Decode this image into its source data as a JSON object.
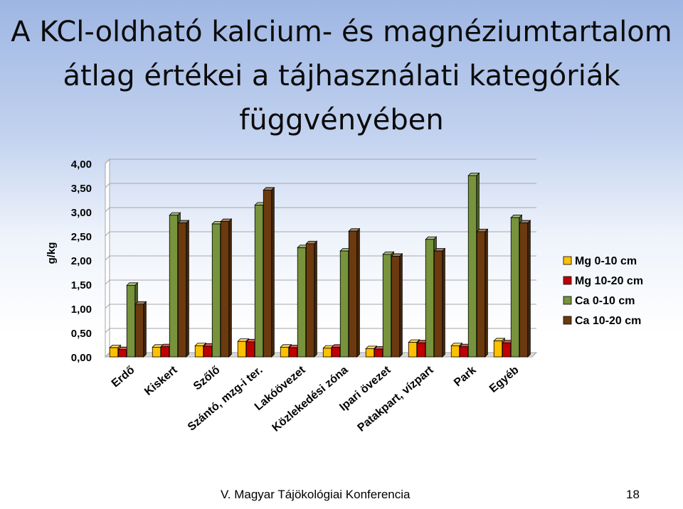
{
  "slide": {
    "title_lines": [
      "A KCl-oldható kalcium- és magnéziumtartalom",
      "átlag értékei a tájhasználati kategóriák",
      "függvényében"
    ],
    "footer": "V. Magyar Tájökológiai Konferencia",
    "page_number": "18"
  },
  "chart_data": {
    "type": "bar",
    "title": "",
    "xlabel": "",
    "ylabel": "g/kg",
    "ylim": [
      0,
      4
    ],
    "yticks": [
      "0,00",
      "0,50",
      "1,00",
      "1,50",
      "2,00",
      "2,50",
      "3,00",
      "3,50",
      "4,00"
    ],
    "legend_position": "right",
    "categories": [
      "Erdő",
      "Kiskert",
      "Szőlő",
      "Szántó, mzg-i ter.",
      "Lakóövezet",
      "Közlekedési zóna",
      "Ipari övezet",
      "Patakpart, vízpart",
      "Park",
      "Egyéb"
    ],
    "series": [
      {
        "name": "Mg 0-10 cm",
        "color": "#ffc000",
        "values": [
          0.19,
          0.2,
          0.23,
          0.32,
          0.2,
          0.18,
          0.17,
          0.3,
          0.23,
          0.33
        ]
      },
      {
        "name": "Mg 10-20 cm",
        "color": "#c00000",
        "values": [
          0.15,
          0.21,
          0.22,
          0.31,
          0.19,
          0.2,
          0.16,
          0.29,
          0.21,
          0.29
        ]
      },
      {
        "name": "Ca 0-10 cm",
        "color": "#77933c",
        "values": [
          1.48,
          2.93,
          2.75,
          3.14,
          2.26,
          2.19,
          2.12,
          2.43,
          3.75,
          2.88
        ]
      },
      {
        "name": "Ca 10-20 cm",
        "color": "#6b3a0f",
        "values": [
          1.09,
          2.77,
          2.8,
          3.45,
          2.34,
          2.6,
          2.08,
          2.19,
          2.59,
          2.77
        ]
      }
    ]
  }
}
